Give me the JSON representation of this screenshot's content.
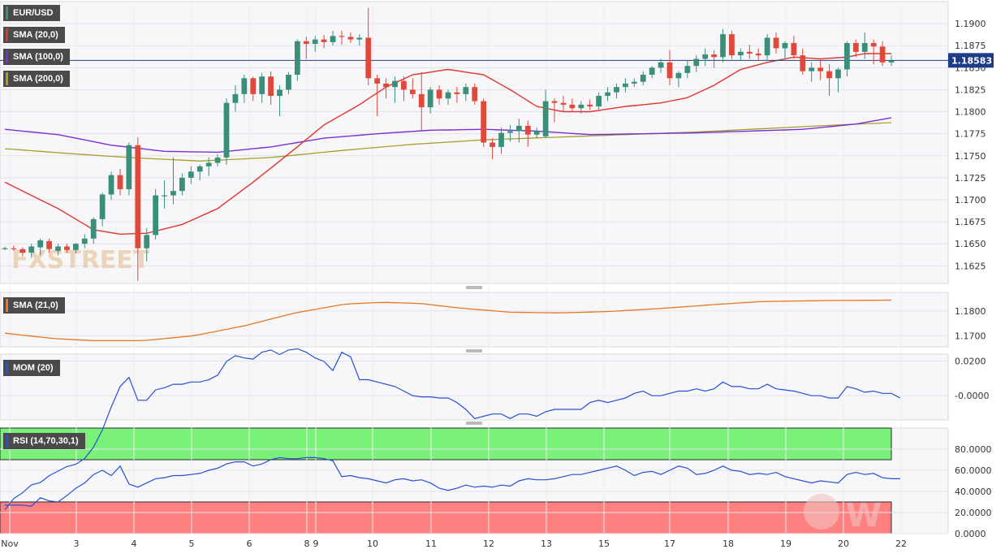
{
  "chart_data": [
    {
      "type": "candlestick",
      "panel": "price",
      "symbol": "EUR/USD",
      "timeframe": "4h",
      "ylim": [
        1.1605,
        1.1925
      ],
      "y_ticks": [
        "1.1900",
        "1.1875",
        "1.1850",
        "1.1825",
        "1.1800",
        "1.1775",
        "1.1750",
        "1.1725",
        "1.1700",
        "1.1675",
        "1.1650",
        "1.1625"
      ],
      "last_price": "1.18583",
      "indicators": [
        {
          "name": "SMA (20,0)",
          "color": "#e0352b"
        },
        {
          "name": "SMA (100,0)",
          "color": "#7b2fd6"
        },
        {
          "name": "SMA (200,0)",
          "color": "#a3a02d"
        }
      ],
      "legend_location": "top-left",
      "grid": true
    },
    {
      "type": "line",
      "panel": "sma21",
      "name": "SMA (21,0)",
      "color": "#e87722",
      "ylim": [
        1.1655,
        1.1875
      ],
      "y_ticks": [
        "1.1800",
        "1.1700"
      ]
    },
    {
      "type": "line",
      "panel": "momentum",
      "name": "MOM (20)",
      "color": "#2650d6",
      "ylim": [
        -0.014,
        0.024
      ],
      "y_ticks": [
        "0.0200",
        "-0.0000"
      ]
    },
    {
      "type": "line",
      "panel": "rsi",
      "name": "RSI (14,70,30,1)",
      "color": "#2650d6",
      "overbought": 70,
      "oversold": 30,
      "ylim": [
        0,
        100
      ],
      "y_ticks": [
        "80.0000",
        "60.0000",
        "40.0000",
        "20.0000",
        "0.0000"
      ]
    }
  ],
  "x_axis": {
    "labels": [
      "Nov",
      "3",
      "4",
      "5",
      "6",
      "8",
      "9",
      "10",
      "11",
      "12",
      "13",
      "15",
      "17",
      "18",
      "19",
      "20",
      "22"
    ]
  },
  "watermark": {
    "left": "FXSTREET",
    "right": "W"
  }
}
